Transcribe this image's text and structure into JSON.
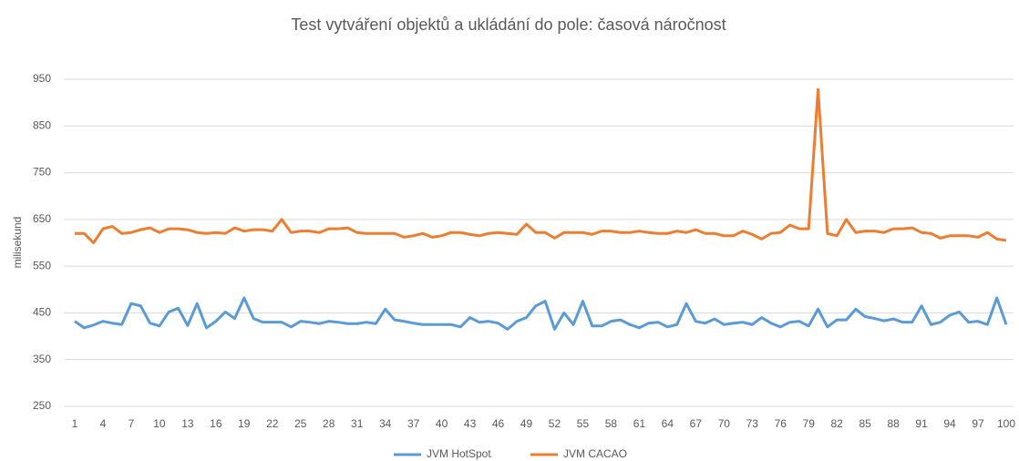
{
  "chart_data": {
    "type": "line",
    "title": "Test vytváření objektů a ukládání do pole: časová náročnost",
    "y_label": "milisekund",
    "x": [
      1,
      2,
      3,
      4,
      5,
      6,
      7,
      8,
      9,
      10,
      11,
      12,
      13,
      14,
      15,
      16,
      17,
      18,
      19,
      20,
      21,
      22,
      23,
      24,
      25,
      26,
      27,
      28,
      29,
      30,
      31,
      32,
      33,
      34,
      35,
      36,
      37,
      38,
      39,
      40,
      41,
      42,
      43,
      44,
      45,
      46,
      47,
      48,
      49,
      50,
      51,
      52,
      53,
      54,
      55,
      56,
      57,
      58,
      59,
      60,
      61,
      62,
      63,
      64,
      65,
      66,
      67,
      68,
      69,
      70,
      71,
      72,
      73,
      74,
      75,
      76,
      77,
      78,
      79,
      80,
      81,
      82,
      83,
      84,
      85,
      86,
      87,
      88,
      89,
      90,
      91,
      92,
      93,
      94,
      95,
      96,
      97,
      98,
      99,
      100
    ],
    "xlim": [
      1,
      100
    ],
    "xticks": [
      1,
      4,
      7,
      10,
      13,
      16,
      19,
      22,
      25,
      28,
      31,
      34,
      37,
      40,
      43,
      46,
      49,
      52,
      55,
      58,
      61,
      64,
      67,
      70,
      73,
      76,
      79,
      82,
      85,
      88,
      91,
      94,
      97,
      100
    ],
    "ylim": [
      250,
      950
    ],
    "yticks": [
      250,
      350,
      450,
      550,
      650,
      750,
      850,
      950
    ],
    "grid": true,
    "legend": "bottom",
    "series": [
      {
        "name": "JVM HotSpot",
        "color": "#5b9bd5",
        "values": [
          432,
          418,
          424,
          432,
          428,
          425,
          470,
          465,
          428,
          422,
          452,
          460,
          423,
          470,
          418,
          432,
          452,
          438,
          482,
          438,
          430,
          430,
          430,
          420,
          432,
          430,
          427,
          432,
          430,
          427,
          427,
          430,
          427,
          458,
          435,
          432,
          428,
          425,
          425,
          425,
          425,
          420,
          440,
          430,
          432,
          428,
          415,
          432,
          440,
          465,
          475,
          415,
          450,
          425,
          475,
          422,
          422,
          432,
          435,
          425,
          418,
          428,
          430,
          420,
          425,
          470,
          432,
          428,
          437,
          425,
          428,
          430,
          425,
          440,
          428,
          420,
          430,
          432,
          422,
          458,
          420,
          435,
          435,
          458,
          442,
          438,
          433,
          437,
          430,
          430,
          465,
          425,
          430,
          445,
          452,
          430,
          432,
          425,
          482,
          425
        ]
      },
      {
        "name": "JVM CACAO",
        "color": "#ed7d31",
        "values": [
          620,
          620,
          600,
          630,
          635,
          620,
          622,
          628,
          632,
          622,
          630,
          630,
          628,
          622,
          620,
          622,
          620,
          632,
          625,
          628,
          628,
          625,
          650,
          622,
          625,
          625,
          622,
          630,
          630,
          632,
          622,
          620,
          620,
          620,
          620,
          612,
          615,
          620,
          612,
          615,
          622,
          622,
          618,
          615,
          620,
          622,
          620,
          618,
          640,
          622,
          622,
          610,
          622,
          622,
          622,
          618,
          625,
          625,
          622,
          622,
          625,
          622,
          620,
          620,
          625,
          622,
          628,
          620,
          620,
          615,
          615,
          625,
          618,
          608,
          620,
          622,
          638,
          630,
          630,
          928,
          620,
          615,
          650,
          622,
          625,
          625,
          622,
          630,
          630,
          632,
          622,
          620,
          610,
          615,
          615,
          615,
          612,
          622,
          608,
          605
        ]
      }
    ]
  }
}
